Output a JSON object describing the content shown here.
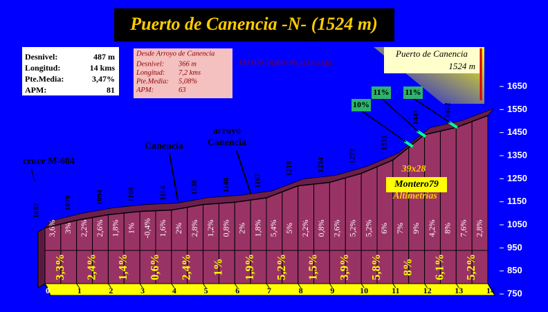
{
  "chart_data": {
    "type": "profile",
    "title": "Puerto de Canencia -N- (1524 m)",
    "info_box": {
      "rows": [
        [
          "Desnivel:",
          "487 m"
        ],
        [
          "Longitud:",
          "14 kms"
        ],
        [
          "Pte.Media:",
          "3,47%"
        ],
        [
          "APM:",
          "81"
        ]
      ]
    },
    "info_box_2": {
      "heading": "Desde Arroyo de Canencia",
      "rows": [
        [
          "Desnivel:",
          "366 m"
        ],
        [
          "Longitud:",
          "7,2 kms"
        ],
        [
          "Pte.Media:",
          "5,08%"
        ],
        [
          "APM:",
          "63"
        ]
      ]
    },
    "hardest_km": "KM MÁS DURO: 8% (12,6-13,6)",
    "summit": {
      "name": "Puerto de Canencia",
      "label": "1524 m",
      "value": 1524
    },
    "places": [
      "cruce M-604",
      "Canencia",
      "arroyo",
      "Canencia"
    ],
    "credits": [
      "39x28",
      "Montero79",
      "Altimetrías"
    ],
    "annotations": [
      "10%",
      "11%",
      "11%"
    ],
    "altitudes": [
      1037,
      1070,
      1094,
      1108,
      1114,
      1138,
      1148,
      1167,
      1219,
      1234,
      1273,
      1331,
      1441,
      1472
    ],
    "half_km_gradients": {
      "values": [
        3.6,
        3,
        2.2,
        2.6,
        1.8,
        1,
        -0.4,
        1.6,
        2,
        2.8,
        1.2,
        0.8,
        2,
        1.8,
        5.4,
        5,
        2.2,
        0.8,
        2.6,
        5.2,
        5.2,
        6,
        7,
        9,
        4.2,
        8,
        7.6,
        2.8
      ],
      "value_labels": [
        "3,6%",
        "3%",
        "2,2%",
        "2,6%",
        "1,8%",
        "1%",
        "-0,4%",
        "1,6%",
        "2%",
        "2,8%",
        "1,2%",
        "0,8%",
        "2%",
        "1,8%",
        "5,4%",
        "5%",
        "2,2%",
        "0,8%",
        "2,6%",
        "5,2%",
        "5,2%",
        "6%",
        "7%",
        "9%",
        "4,2%",
        "8%",
        "7,6%",
        "2,8%"
      ]
    },
    "km_gradients": {
      "values": [
        3.3,
        2.4,
        1.4,
        0.6,
        2.4,
        1,
        1.9,
        5.2,
        1.5,
        3.9,
        5.8,
        8,
        6.1,
        5.2
      ],
      "value_labels": [
        "3,3%",
        "2,4%",
        "1,4%",
        "0,6%",
        "2,4%",
        "1%",
        "1,9%",
        "5,2%",
        "1,5%",
        "3,9%",
        "5,8%",
        "8%",
        "6,1%",
        "5,2%"
      ]
    },
    "color": "#993366",
    "xlim": [
      0,
      14
    ],
    "xticks": [
      0,
      1,
      2,
      3,
      4,
      5,
      6,
      7,
      8,
      9,
      10,
      11,
      12,
      13,
      14
    ],
    "ylim": [
      750,
      1650
    ],
    "yticks": [
      750,
      850,
      950,
      1050,
      1150,
      1250,
      1350,
      1450,
      1550,
      1650
    ]
  }
}
